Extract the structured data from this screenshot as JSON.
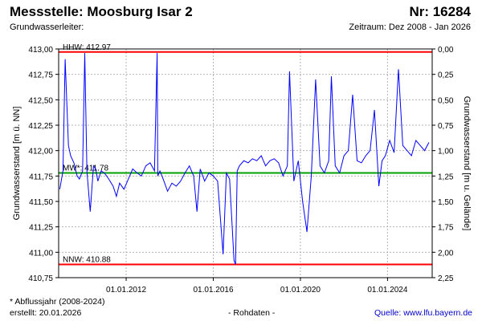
{
  "header": {
    "title": "Messstelle: Moosburg Isar 2",
    "number": "Nr: 16284",
    "aquifer_label": "Grundwasserleiter:",
    "period": "Zeitraum: Dez 2008 - Jan 2026"
  },
  "chart_data": {
    "type": "line",
    "y_label_left": "Grundwasserstand [m ü. NN]",
    "y_label_right": "Grundwasserstand [m u. Gelände]",
    "y_ticks_left": [
      "413,00",
      "412,75",
      "412,50",
      "412,25",
      "412,00",
      "411,75",
      "411,50",
      "411,25",
      "411,00",
      "410,75"
    ],
    "y_ticks_right": [
      "0,00",
      "0,25",
      "0,50",
      "0,75",
      "1,00",
      "1,25",
      "1,50",
      "1,75",
      "2,00",
      "2,25"
    ],
    "x_ticks": [
      "01.01.2012",
      "01.01.2016",
      "01.01.2020",
      "01.01.2024"
    ],
    "ylim": [
      410.75,
      413.0
    ],
    "xlim": [
      2008.9,
      2026.05
    ],
    "grid": true,
    "reference_lines": [
      {
        "label": "HHW: 412.97",
        "value": 412.97,
        "color": "#ff0000"
      },
      {
        "label": "MW*: 411.78",
        "value": 411.78,
        "color": "#00a000"
      },
      {
        "label": "NNW: 410.88",
        "value": 410.88,
        "color": "#ff0000"
      }
    ],
    "series": [
      {
        "color": "#0000ff",
        "x": [
          2008.95,
          2009.1,
          2009.2,
          2009.35,
          2009.45,
          2009.6,
          2009.75,
          2009.85,
          2010.0,
          2010.1,
          2010.2,
          2010.35,
          2010.5,
          2010.6,
          2010.7,
          2010.85,
          2011.0,
          2011.2,
          2011.4,
          2011.55,
          2011.7,
          2011.9,
          2012.1,
          2012.3,
          2012.5,
          2012.7,
          2012.9,
          2013.1,
          2013.3,
          2013.42,
          2013.45,
          2013.55,
          2013.7,
          2013.9,
          2014.1,
          2014.3,
          2014.5,
          2014.7,
          2014.9,
          2015.1,
          2015.25,
          2015.4,
          2015.6,
          2015.8,
          2016.0,
          2016.2,
          2016.45,
          2016.6,
          2016.75,
          2016.95,
          2017.02,
          2017.1,
          2017.2,
          2017.4,
          2017.6,
          2017.8,
          2018.0,
          2018.2,
          2018.4,
          2018.6,
          2018.8,
          2019.0,
          2019.2,
          2019.4,
          2019.5,
          2019.7,
          2019.9,
          2020.1,
          2020.3,
          2020.5,
          2020.7,
          2020.9,
          2021.1,
          2021.3,
          2021.42,
          2021.6,
          2021.8,
          2022.0,
          2022.2,
          2022.4,
          2022.6,
          2022.8,
          2023.0,
          2023.2,
          2023.4,
          2023.6,
          2023.75,
          2023.9,
          2024.1,
          2024.3,
          2024.5,
          2024.7,
          2024.9,
          2025.1,
          2025.3,
          2025.5,
          2025.7,
          2025.9
        ],
        "y": [
          411.62,
          411.8,
          412.9,
          412.05,
          411.95,
          411.88,
          411.75,
          411.72,
          411.8,
          412.96,
          411.8,
          411.4,
          411.85,
          411.82,
          411.7,
          411.8,
          411.78,
          411.72,
          411.65,
          411.55,
          411.68,
          411.62,
          411.72,
          411.82,
          411.78,
          411.75,
          411.85,
          411.88,
          411.8,
          412.96,
          411.75,
          411.8,
          411.72,
          411.6,
          411.68,
          411.65,
          411.7,
          411.78,
          411.85,
          411.75,
          411.4,
          411.82,
          411.7,
          411.78,
          411.75,
          411.7,
          410.98,
          411.78,
          411.72,
          410.92,
          410.88,
          411.8,
          411.85,
          411.9,
          411.88,
          411.92,
          411.9,
          411.95,
          411.85,
          411.9,
          411.92,
          411.88,
          411.75,
          411.85,
          412.78,
          411.7,
          411.9,
          411.5,
          411.2,
          411.75,
          412.7,
          411.85,
          411.78,
          411.9,
          412.73,
          411.85,
          411.78,
          411.95,
          412.0,
          412.55,
          411.9,
          411.88,
          411.95,
          412.0,
          412.4,
          411.65,
          411.9,
          411.95,
          412.1,
          411.98,
          412.8,
          412.05,
          412.0,
          411.95,
          412.1,
          412.05,
          412.0,
          412.08
        ]
      }
    ]
  },
  "footer": {
    "note": "* Abflussjahr (2008-2024)",
    "created": "erstellt:  20.01.2026",
    "data_type": "- Rohdaten -",
    "source": "Quelle: www.lfu.bayern.de"
  }
}
